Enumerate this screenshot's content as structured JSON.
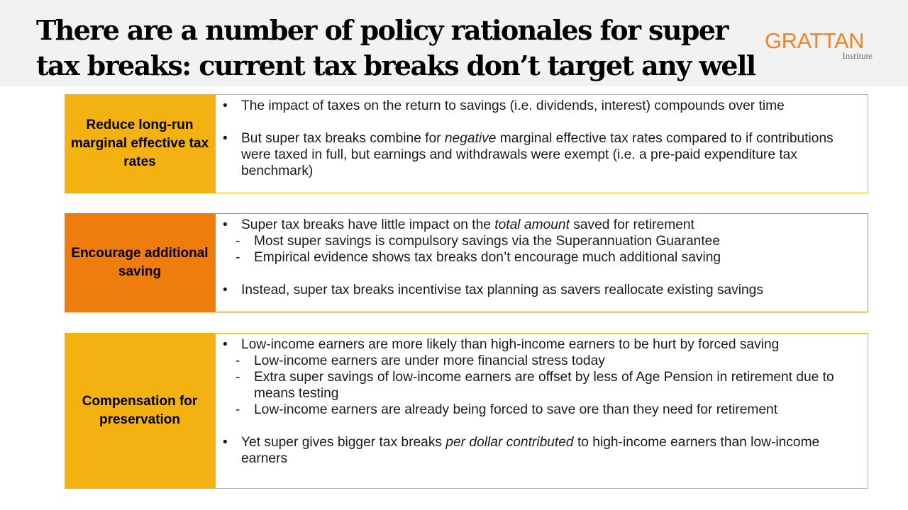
{
  "header": {
    "title": "There are a number of policy rationales for super tax breaks: current tax breaks don’t target any well",
    "logo": {
      "main": "GRATTAN",
      "sub": "Institute"
    }
  },
  "colors": {
    "amber": "#f3b211",
    "orange": "#ef7d0d",
    "logo_orange": "#f58220",
    "header_bg": "#f2f2f2"
  },
  "rows": [
    {
      "label": "Reduce long-run marginal effective tax rates",
      "items": [
        {
          "type": "bullet",
          "marker": "•",
          "text": "The impact of taxes on the return to savings (i.e. dividends, interest) compounds over time"
        },
        {
          "type": "gap"
        },
        {
          "type": "bullet",
          "marker": "•",
          "pre": "But super tax breaks combine for ",
          "em": "negative",
          "post": " marginal effective tax rates compared to if contributions were taxed in full, but earnings and withdrawals were exempt (i.e. a pre-paid expenditure tax benchmark)"
        }
      ]
    },
    {
      "label": "Encourage additional saving",
      "items": [
        {
          "type": "bullet",
          "marker": "•",
          "pre": "Super tax breaks have little impact on the ",
          "em": "total amount",
          "post": " saved for retirement"
        },
        {
          "type": "sub",
          "marker": "-",
          "text": "Most super savings is compulsory savings via the Superannuation Guarantee"
        },
        {
          "type": "sub",
          "marker": "-",
          "text": "Empirical evidence shows tax breaks don’t encourage much additional saving"
        },
        {
          "type": "gap"
        },
        {
          "type": "bullet",
          "marker": "•",
          "text": "Instead, super tax breaks incentivise tax planning as savers reallocate existing savings"
        }
      ]
    },
    {
      "label": "Compensation for preservation",
      "items": [
        {
          "type": "bullet",
          "marker": "•",
          "text": "Low-income earners are more likely than high-income earners to be hurt by forced saving"
        },
        {
          "type": "sub",
          "marker": "-",
          "text": "Low-income earners are under more financial stress today"
        },
        {
          "type": "sub",
          "marker": "-",
          "text": "Extra super savings of low-income earners are offset by less of Age Pension in retirement due to means testing"
        },
        {
          "type": "sub",
          "marker": "-",
          "text": "Low-income earners are already being forced to save ore than they need for retirement"
        },
        {
          "type": "gap"
        },
        {
          "type": "bullet",
          "marker": "•",
          "pre": "Yet super gives bigger tax breaks ",
          "em": "per dollar contributed",
          "post": " to high-income earners than low-income earners"
        }
      ]
    }
  ]
}
